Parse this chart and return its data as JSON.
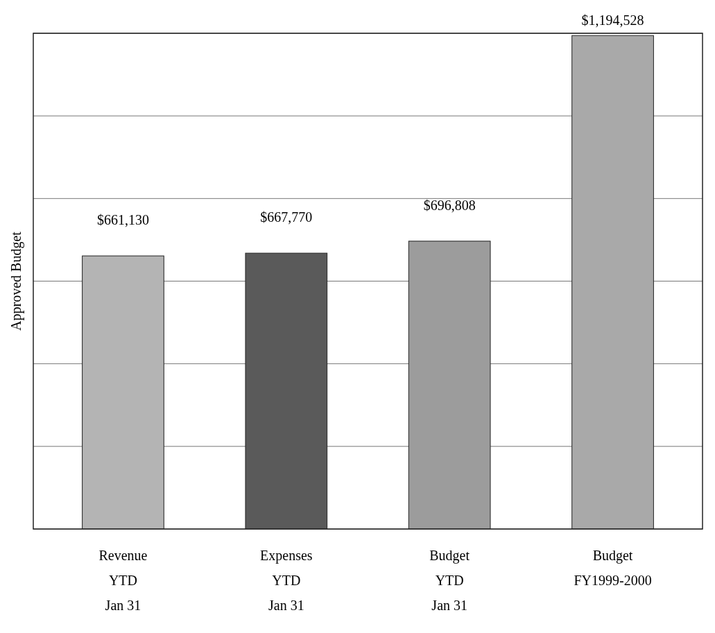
{
  "chart_data": {
    "type": "bar",
    "ylabel": "Approved Budget",
    "categories": [
      "Revenue\nYTD\nJan 31",
      "Expenses\nYTD\nJan 31",
      "Budget\nYTD\nJan 31",
      "Budget\nFY1999-2000"
    ],
    "values": [
      661130,
      667770,
      696808,
      1194528
    ],
    "colors": [
      "#b4b4b4",
      "#5a5a5a",
      "#9c9c9c",
      "#a9a9a9"
    ],
    "value_labels": [
      "$661,130",
      "$667,770",
      "$696,808",
      "$1,194,528"
    ],
    "ylim": [
      0,
      1200000
    ],
    "yticks": [
      {
        "value": 0,
        "label": null
      },
      {
        "value": 200000,
        "label": null
      },
      {
        "value": 400000,
        "label": null
      },
      {
        "value": 600000,
        "label": null
      },
      {
        "value": 800000,
        "label": null
      },
      {
        "value": 1000000,
        "label": null
      },
      {
        "value": 1200000,
        "label": null
      }
    ],
    "grid": "y",
    "tick_labels": "x"
  }
}
